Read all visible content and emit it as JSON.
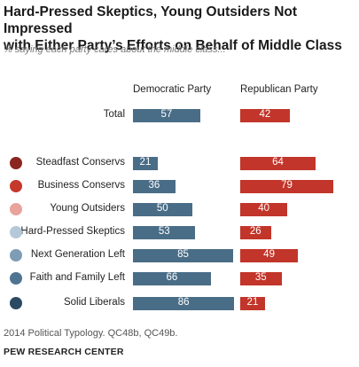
{
  "header": {
    "title_line1": "Hard-Pressed Skeptics, Young Outsiders Not Impressed",
    "title_line2": "with Either Party’s Efforts on Behalf of Middle Class",
    "subtitle": "% saying each party cares about the middle class..."
  },
  "footer": {
    "note": "2014 Political Typology. QC48b, QC49b.",
    "source": "PEW RESEARCH CENTER"
  },
  "chart_data": {
    "type": "bar",
    "title": "Hard-Pressed Skeptics, Young Outsiders Not Impressed with Either Party’s Efforts on Behalf of Middle Class",
    "subtitle": "% saying each party cares about the middle class...",
    "categories": [
      "Total",
      "Steadfast Conservs",
      "Business Conservs",
      "Young Outsiders",
      "Hard-Pressed Skeptics",
      "Next Generation Left",
      "Faith and Family Left",
      "Solid Liberals"
    ],
    "series": [
      {
        "name": "Democratic Party",
        "color": "#4a6d87",
        "values": [
          57,
          21,
          36,
          50,
          53,
          85,
          66,
          86
        ]
      },
      {
        "name": "Republican Party",
        "color": "#c2352a",
        "values": [
          42,
          64,
          79,
          40,
          26,
          49,
          35,
          21
        ]
      }
    ],
    "dot_colors": [
      null,
      "#8b2520",
      "#c4392c",
      "#e8a39c",
      "#b4c8d9",
      "#7f9cb5",
      "#4f7491",
      "#2c4a62"
    ],
    "xlim": [
      0,
      100
    ]
  }
}
